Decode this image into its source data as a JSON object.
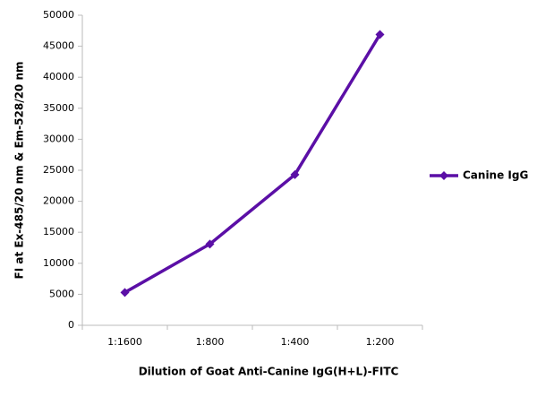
{
  "chart_data": {
    "type": "line",
    "x_label": "Dilution of Goat Anti-Canine IgG(H+L)-FITC",
    "y_label": "FI at Ex-485/20 nm & Em-528/20 nm",
    "categories": [
      "1:1600",
      "1:800",
      "1:400",
      "1:200"
    ],
    "series": [
      {
        "name": "Canine IgG",
        "color": "#5b0fa6",
        "values": [
          5300,
          13100,
          24300,
          46900
        ]
      }
    ],
    "ylim": [
      0,
      50000
    ],
    "yticks": [
      0,
      5000,
      10000,
      15000,
      20000,
      25000,
      30000,
      35000,
      40000,
      45000,
      50000
    ],
    "grid": false,
    "legend": "right"
  }
}
